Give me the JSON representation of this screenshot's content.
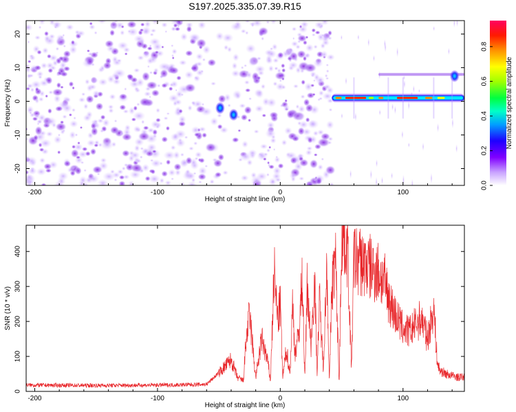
{
  "title": "S197.2025.335.07.39.R15",
  "chart_data": [
    {
      "type": "heatmap",
      "name": "spectrogram",
      "xlabel": "Height of straight line (km)",
      "ylabel": "Frequency (Hz)",
      "xlim": [
        -207,
        150
      ],
      "ylim": [
        -25,
        24
      ],
      "xticks": [
        -200,
        -100,
        0,
        100
      ],
      "xtick_labels": [
        "-200",
        "-100",
        "0",
        "100"
      ],
      "yticks": [
        -20,
        -10,
        0,
        10,
        20
      ],
      "ytick_labels": [
        "-20",
        "-10",
        "0",
        "10",
        "20"
      ],
      "colorbar": {
        "label": "Normalized spectral amplitude",
        "range": [
          0,
          0.95
        ],
        "ticks": [
          0,
          0.2,
          0.4,
          0.6,
          0.8
        ],
        "tick_labels": [
          "0.0",
          "0.2",
          "0.4",
          "0.6",
          "0.8"
        ],
        "colors": [
          "#ffffff",
          "#c8a2ff",
          "#8000ff",
          "#0000ff",
          "#00c8ff",
          "#00ff64",
          "#b4ff00",
          "#ffff00",
          "#ff8000",
          "#ff0000",
          "#ff0080"
        ]
      },
      "features": [
        {
          "description": "broadband noise",
          "x_range": [
            -207,
            42
          ],
          "freq_range": [
            -25,
            24
          ],
          "amplitude": 0.12
        },
        {
          "description": "carrier line",
          "x_range": [
            42,
            150
          ],
          "freq": 1,
          "amplitude": 0.9
        },
        {
          "description": "sideband line",
          "x_range": [
            80,
            150
          ],
          "freq": 8,
          "amplitude": 0.2
        },
        {
          "description": "spot",
          "x": -49,
          "freq": -2,
          "amplitude": 0.35
        },
        {
          "description": "spot",
          "x": -38,
          "freq": -4,
          "amplitude": 0.3
        },
        {
          "description": "spot",
          "x": 142,
          "freq": 7.5,
          "amplitude": 0.35
        }
      ]
    },
    {
      "type": "line",
      "name": "snr",
      "xlabel": "Height of straight line (km)",
      "ylabel": "SNR (10 * v/v)",
      "xlim": [
        -207,
        150
      ],
      "ylim": [
        0,
        475
      ],
      "xticks": [
        -200,
        -100,
        0,
        100
      ],
      "xtick_labels": [
        "-200",
        "-100",
        "0",
        "100"
      ],
      "yticks": [
        0,
        100,
        200,
        300,
        400
      ],
      "ytick_labels": [
        "0",
        "100",
        "200",
        "300",
        "400"
      ],
      "color": "#e8262a",
      "series": [
        {
          "name": "SNR",
          "x": [
            -207,
            -150,
            -100,
            -60,
            -48,
            -40,
            -35,
            -30,
            -28,
            -25,
            -20,
            -15,
            -10,
            -8,
            -5,
            -2,
            0,
            2,
            5,
            8,
            10,
            12,
            15,
            18,
            20,
            22,
            25,
            28,
            30,
            32,
            35,
            38,
            40,
            42,
            45,
            48,
            50,
            53,
            55,
            58,
            60,
            65,
            70,
            75,
            80,
            85,
            90,
            95,
            100,
            105,
            110,
            115,
            120,
            125,
            128,
            130,
            135,
            140,
            145,
            150
          ],
          "y": [
            18,
            17,
            18,
            20,
            60,
            90,
            40,
            30,
            140,
            220,
            40,
            150,
            80,
            30,
            340,
            200,
            250,
            40,
            120,
            50,
            250,
            110,
            160,
            330,
            30,
            310,
            130,
            320,
            60,
            260,
            70,
            360,
            20,
            300,
            380,
            25,
            450,
            430,
            400,
            60,
            380,
            370,
            360,
            350,
            340,
            310,
            250,
            210,
            180,
            170,
            190,
            210,
            150,
            240,
            80,
            60,
            50,
            45,
            40,
            42
          ]
        }
      ]
    }
  ]
}
